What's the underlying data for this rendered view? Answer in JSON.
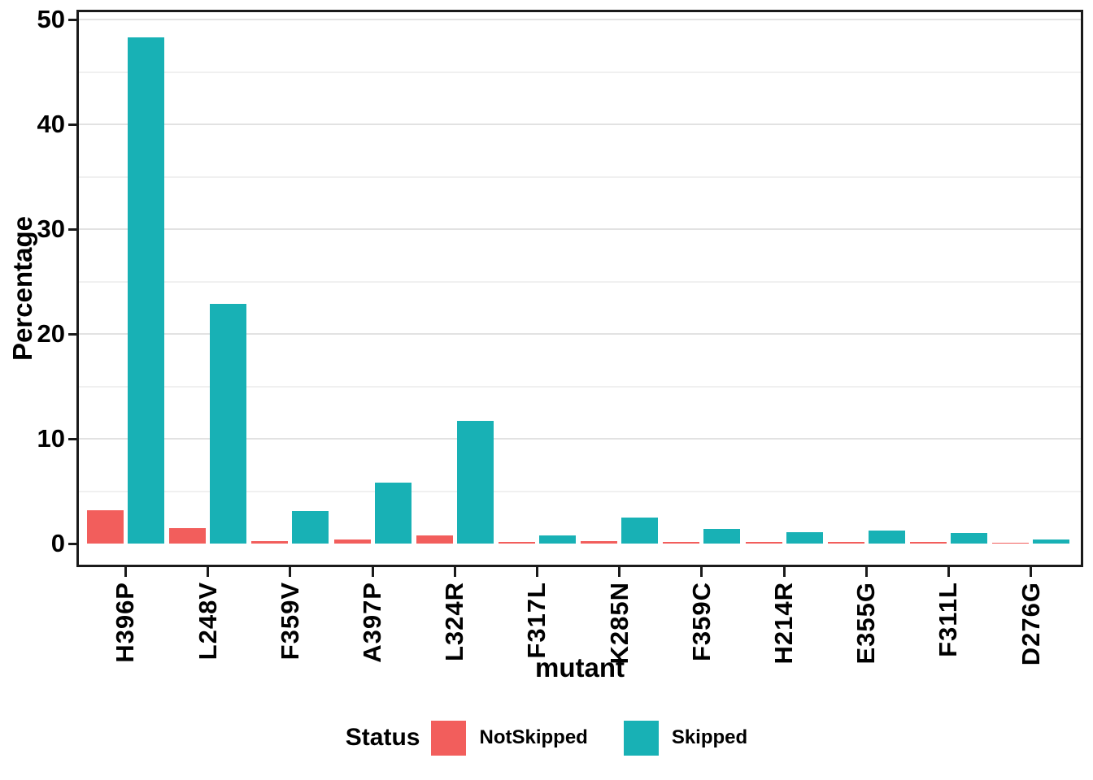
{
  "chart_data": {
    "type": "bar",
    "title": "",
    "xlabel": "mutant",
    "ylabel": "Percentage",
    "categories": [
      "H396P",
      "L248V",
      "F359V",
      "A397P",
      "L324R",
      "F317L",
      "K285N",
      "F359C",
      "H214R",
      "E355G",
      "F311L",
      "D276G"
    ],
    "series": [
      {
        "name": "NotSkipped",
        "color": "#f25e5c",
        "values": [
          3.2,
          1.5,
          0.25,
          0.4,
          0.75,
          0.15,
          0.2,
          0.15,
          0.15,
          0.15,
          0.15,
          0.06
        ]
      },
      {
        "name": "Skipped",
        "color": "#18b1b5",
        "values": [
          48.3,
          22.9,
          3.1,
          5.8,
          11.7,
          0.8,
          2.45,
          1.4,
          1.05,
          1.25,
          1.0,
          0.4
        ]
      }
    ],
    "ylim": [
      0,
      50
    ],
    "yticks": [
      0,
      10,
      20,
      30,
      40,
      50
    ],
    "minor_gridlines": [
      5,
      15,
      25,
      35,
      45
    ],
    "bar_mode": "grouped",
    "grid": "horizontal major+minor",
    "legend_position": "bottom"
  },
  "axes": {
    "y_tick_labels": [
      "0",
      "10",
      "20",
      "30",
      "40",
      "50"
    ]
  },
  "legend": {
    "title": "Status",
    "items": [
      {
        "label": "NotSkipped",
        "color": "#f25e5c"
      },
      {
        "label": "Skipped",
        "color": "#18b1b5"
      }
    ]
  },
  "colors": {
    "panel_border": "#1a1a1a",
    "major_grid": "#e2e2e2",
    "minor_grid": "#f0f0f0",
    "background": "#ffffff",
    "text": "#000000"
  }
}
